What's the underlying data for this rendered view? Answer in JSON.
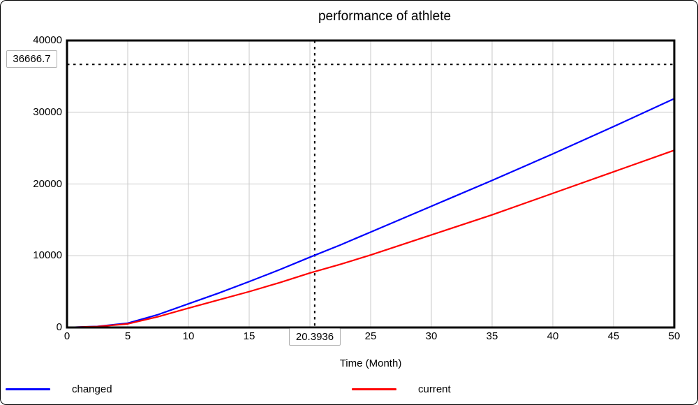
{
  "chart_data": {
    "type": "line",
    "title": "performance of athlete",
    "xlabel": "Time (Month)",
    "ylabel": "",
    "xlim": [
      0,
      50
    ],
    "ylim": [
      0,
      40000
    ],
    "x_ticks": [
      0,
      5,
      10,
      15,
      20,
      25,
      30,
      35,
      40,
      45,
      50
    ],
    "y_ticks": [
      0,
      10000,
      20000,
      30000,
      40000
    ],
    "grid": true,
    "grid_color": "#c8c8c8",
    "frame_color": "#000000",
    "legend_position": "bottom",
    "x": [
      0,
      2.5,
      5,
      7.5,
      10,
      12.5,
      15,
      17.5,
      20,
      22.5,
      25,
      30,
      35,
      40,
      45,
      50
    ],
    "series": [
      {
        "name": "changed",
        "color": "#0000ff",
        "values": [
          0,
          150,
          600,
          1800,
          3300,
          4800,
          6400,
          8050,
          9800,
          11500,
          13300,
          16900,
          20500,
          24200,
          28000,
          31900
        ]
      },
      {
        "name": "current",
        "color": "#ff0000",
        "values": [
          0,
          130,
          500,
          1500,
          2700,
          3850,
          5000,
          6250,
          7600,
          8800,
          10100,
          12900,
          15700,
          18700,
          21700,
          24700
        ]
      }
    ],
    "crosshair": {
      "x": 20.3936,
      "y": 36666.7,
      "x_label": "20.3936",
      "y_label": "36666.7",
      "line_color": "#000000"
    }
  }
}
